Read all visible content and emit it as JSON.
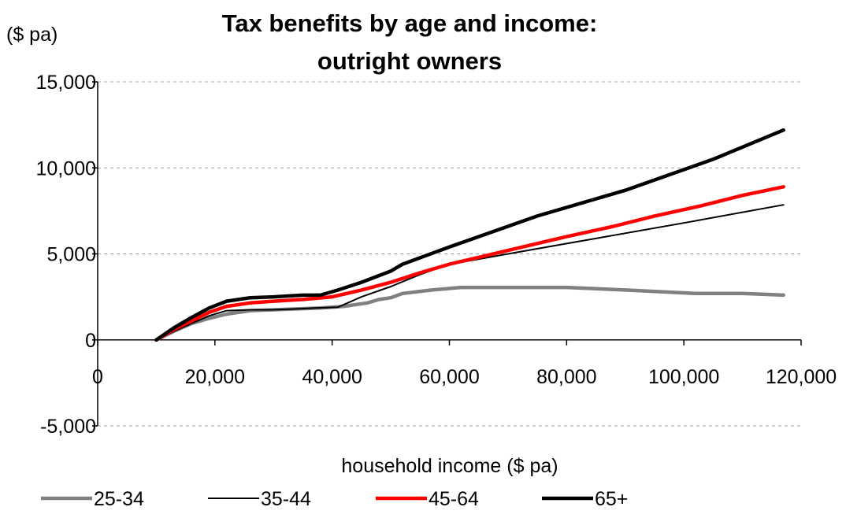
{
  "chart_data": {
    "type": "line",
    "title_lines": [
      "Tax benefits by age and income:",
      "outright owners"
    ],
    "xlabel": "household income ($ pa)",
    "ylabel": "($ pa)",
    "xlim": [
      0,
      120000
    ],
    "ylim": [
      -5000,
      15000
    ],
    "x_ticks": [
      0,
      20000,
      40000,
      60000,
      80000,
      100000,
      120000
    ],
    "x_tick_labels": [
      "0",
      "20,000",
      "40,000",
      "60,000",
      "80,000",
      "100,000",
      "120,000"
    ],
    "y_ticks": [
      -5000,
      0,
      5000,
      10000,
      15000
    ],
    "y_tick_labels": [
      "-5,000",
      "0",
      "5,000",
      "10,000",
      "15,000"
    ],
    "grid": "horizontal dashed",
    "legend": "bottom",
    "series": [
      {
        "name": "25-34",
        "color": "#808080",
        "width": 4.5,
        "points": [
          [
            10000,
            0
          ],
          [
            13000,
            500
          ],
          [
            16000,
            950
          ],
          [
            19000,
            1250
          ],
          [
            22000,
            1500
          ],
          [
            26000,
            1700
          ],
          [
            30000,
            1750
          ],
          [
            34000,
            1800
          ],
          [
            38000,
            1850
          ],
          [
            42000,
            1950
          ],
          [
            46000,
            2150
          ],
          [
            48000,
            2350
          ],
          [
            50000,
            2450
          ],
          [
            52000,
            2700
          ],
          [
            57000,
            2900
          ],
          [
            62000,
            3050
          ],
          [
            70000,
            3050
          ],
          [
            80000,
            3050
          ],
          [
            90000,
            2900
          ],
          [
            102000,
            2700
          ],
          [
            110000,
            2700
          ],
          [
            117000,
            2600
          ]
        ]
      },
      {
        "name": "35-44",
        "color": "#000000",
        "width": 2,
        "points": [
          [
            10000,
            0
          ],
          [
            13000,
            500
          ],
          [
            16000,
            950
          ],
          [
            19000,
            1400
          ],
          [
            22000,
            1700
          ],
          [
            26000,
            1750
          ],
          [
            30000,
            1750
          ],
          [
            34000,
            1800
          ],
          [
            37000,
            1850
          ],
          [
            41000,
            1900
          ],
          [
            45000,
            2500
          ],
          [
            50000,
            3100
          ],
          [
            55000,
            3800
          ],
          [
            60000,
            4400
          ],
          [
            65000,
            4700
          ],
          [
            80000,
            5600
          ],
          [
            100000,
            6800
          ],
          [
            117000,
            7850
          ]
        ]
      },
      {
        "name": "45-64",
        "color": "#ff0000",
        "width": 4.5,
        "points": [
          [
            10000,
            0
          ],
          [
            13000,
            600
          ],
          [
            16000,
            1100
          ],
          [
            19000,
            1600
          ],
          [
            22000,
            1950
          ],
          [
            26000,
            2150
          ],
          [
            30000,
            2250
          ],
          [
            35000,
            2350
          ],
          [
            40000,
            2500
          ],
          [
            45000,
            2900
          ],
          [
            50000,
            3350
          ],
          [
            55000,
            3900
          ],
          [
            60000,
            4400
          ],
          [
            65000,
            4800
          ],
          [
            70000,
            5200
          ],
          [
            80000,
            6000
          ],
          [
            88000,
            6600
          ],
          [
            95000,
            7200
          ],
          [
            103000,
            7800
          ],
          [
            110000,
            8400
          ],
          [
            117000,
            8900
          ]
        ]
      },
      {
        "name": "65+",
        "color": "#000000",
        "width": 4.5,
        "points": [
          [
            10000,
            0
          ],
          [
            13000,
            700
          ],
          [
            16000,
            1300
          ],
          [
            19000,
            1850
          ],
          [
            22000,
            2250
          ],
          [
            26000,
            2450
          ],
          [
            30000,
            2500
          ],
          [
            35000,
            2600
          ],
          [
            38000,
            2600
          ],
          [
            41000,
            2900
          ],
          [
            45000,
            3350
          ],
          [
            50000,
            4000
          ],
          [
            52000,
            4400
          ],
          [
            56000,
            4900
          ],
          [
            60000,
            5400
          ],
          [
            65000,
            6000
          ],
          [
            75000,
            7200
          ],
          [
            90000,
            8700
          ],
          [
            105000,
            10500
          ],
          [
            117000,
            12200
          ]
        ]
      }
    ]
  }
}
